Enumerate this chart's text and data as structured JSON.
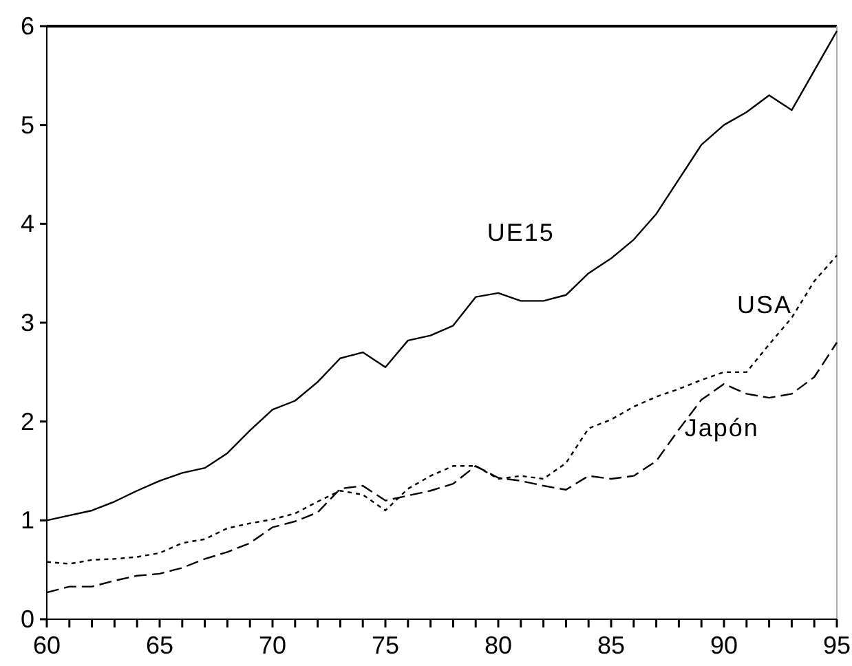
{
  "chart_data": {
    "type": "line",
    "x": [
      60,
      61,
      62,
      63,
      64,
      65,
      66,
      67,
      68,
      69,
      70,
      71,
      72,
      73,
      74,
      75,
      76,
      77,
      78,
      79,
      80,
      81,
      82,
      83,
      84,
      85,
      86,
      87,
      88,
      89,
      90,
      91,
      92,
      93,
      94,
      95
    ],
    "xlim": [
      60,
      95
    ],
    "xticks": [
      60,
      {
        "value": 61,
        "label": null
      },
      {
        "value": 62,
        "label": null
      },
      {
        "value": 63,
        "label": null
      },
      {
        "value": 64,
        "label": null
      },
      65,
      {
        "value": 66,
        "label": null
      },
      {
        "value": 67,
        "label": null
      },
      {
        "value": 68,
        "label": null
      },
      {
        "value": 69,
        "label": null
      },
      70,
      {
        "value": 71,
        "label": null
      },
      {
        "value": 72,
        "label": null
      },
      {
        "value": 73,
        "label": null
      },
      {
        "value": 74,
        "label": null
      },
      75,
      {
        "value": 76,
        "label": null
      },
      {
        "value": 77,
        "label": null
      },
      {
        "value": 78,
        "label": null
      },
      {
        "value": 79,
        "label": null
      },
      80,
      {
        "value": 81,
        "label": null
      },
      {
        "value": 82,
        "label": null
      },
      {
        "value": 83,
        "label": null
      },
      {
        "value": 84,
        "label": null
      },
      85,
      {
        "value": 86,
        "label": null
      },
      {
        "value": 87,
        "label": null
      },
      {
        "value": 88,
        "label": null
      },
      {
        "value": 89,
        "label": null
      },
      90,
      {
        "value": 91,
        "label": null
      },
      {
        "value": 92,
        "label": null
      },
      {
        "value": 93,
        "label": null
      },
      {
        "value": 94,
        "label": null
      },
      95
    ],
    "ylim": [
      0,
      6
    ],
    "yticks": [
      0,
      1,
      2,
      3,
      4,
      5,
      6
    ],
    "grid": false,
    "series": [
      {
        "name": "UE15",
        "color": "#000000",
        "line_style": "solid",
        "values": [
          1.0,
          1.05,
          1.1,
          1.19,
          1.3,
          1.4,
          1.48,
          1.53,
          1.68,
          1.91,
          2.12,
          2.21,
          2.4,
          2.64,
          2.7,
          2.55,
          2.82,
          2.87,
          2.97,
          3.26,
          3.3,
          3.22,
          3.22,
          3.28,
          3.5,
          3.65,
          3.84,
          4.1,
          4.45,
          4.8,
          5.0,
          5.13,
          5.3,
          5.15,
          5.55,
          5.95
        ]
      },
      {
        "name": "USA",
        "color": "#000000",
        "line_style": "dotted",
        "values": [
          0.58,
          0.56,
          0.6,
          0.61,
          0.63,
          0.67,
          0.77,
          0.81,
          0.92,
          0.97,
          1.01,
          1.07,
          1.19,
          1.3,
          1.26,
          1.1,
          1.32,
          1.45,
          1.55,
          1.55,
          1.42,
          1.45,
          1.42,
          1.58,
          1.93,
          2.02,
          2.15,
          2.25,
          2.33,
          2.42,
          2.5,
          2.5,
          2.78,
          3.05,
          3.42,
          3.68
        ]
      },
      {
        "name": "Japón",
        "color": "#000000",
        "line_style": "dashed",
        "values": [
          0.27,
          0.33,
          0.33,
          0.39,
          0.44,
          0.46,
          0.52,
          0.61,
          0.68,
          0.77,
          0.93,
          0.99,
          1.08,
          1.32,
          1.35,
          1.2,
          1.25,
          1.3,
          1.37,
          1.55,
          1.43,
          1.4,
          1.35,
          1.31,
          1.45,
          1.42,
          1.45,
          1.6,
          1.92,
          2.22,
          2.38,
          2.28,
          2.24,
          2.28,
          2.45,
          2.8
        ]
      }
    ]
  }
}
